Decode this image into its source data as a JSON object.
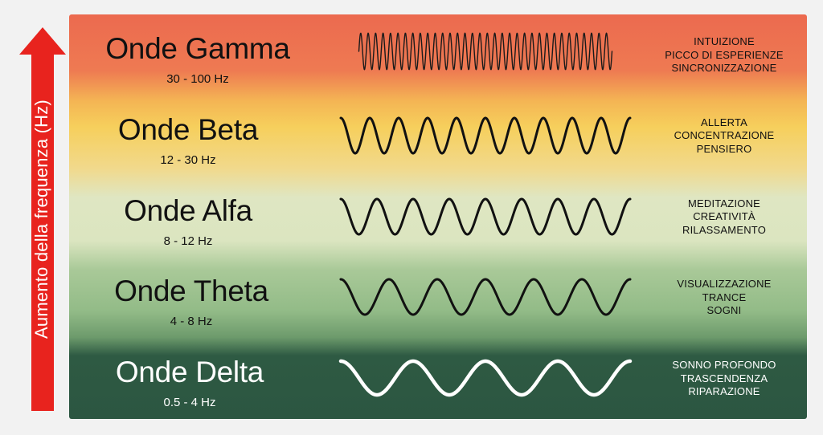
{
  "axis": {
    "label": "Aumento della frequenza (Hz)",
    "arrow_color": "#e8231e"
  },
  "bands": [
    {
      "id": "gamma",
      "name": "Onde Gamma",
      "range": "30 - 100 Hz",
      "traits": [
        "INTUIZIONE",
        "PICCO DI ESPERIENZE",
        "SINCRONIZZAZIONE"
      ],
      "cycles": 34,
      "stroke": "#1a1a1a",
      "text_color": "dark"
    },
    {
      "id": "beta",
      "name": "Onde Beta",
      "range": "12 - 30 Hz",
      "traits": [
        "ALLERTA",
        "CONCENTRAZIONE",
        "PENSIERO"
      ],
      "cycles": 10,
      "stroke": "#111111",
      "text_color": "dark"
    },
    {
      "id": "alfa",
      "name": "Onde Alfa",
      "range": "8 - 12 Hz",
      "traits": [
        "MEDITAZIONE",
        "CREATIVITÀ",
        "RILASSAMENTO"
      ],
      "cycles": 8,
      "stroke": "#111111",
      "text_color": "dark"
    },
    {
      "id": "theta",
      "name": "Onde Theta",
      "range": "4 - 8 Hz",
      "traits": [
        "VISUALIZZAZIONE",
        "TRANCE",
        "SOGNI"
      ],
      "cycles": 6,
      "stroke": "#111111",
      "text_color": "dark"
    },
    {
      "id": "delta",
      "name": "Onde Delta",
      "range": "0.5 - 4 Hz",
      "traits": [
        "SONNO PROFONDO",
        "TRASCENDENZA",
        "RIPARAZIONE"
      ],
      "cycles": 4,
      "stroke": "#ffffff",
      "text_color": "light"
    }
  ]
}
